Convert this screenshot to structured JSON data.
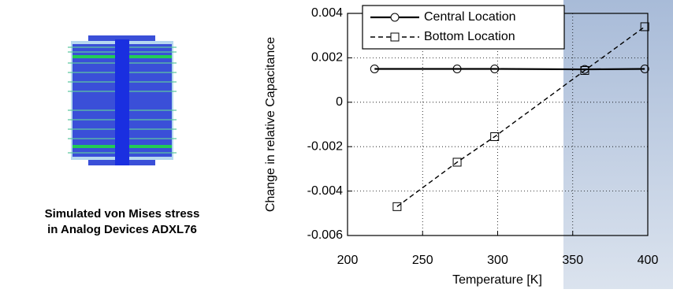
{
  "caption": [
    "Simulated von Mises stress",
    "in Analog Devices ADXL76"
  ],
  "chart_data": {
    "type": "line",
    "xlabel": "Temperature [K]",
    "ylabel": "Change in relative Capacitance",
    "series": [
      {
        "name": "Central Location",
        "color": "#000000",
        "dash": "solid",
        "marker": "circle",
        "x": [
          218,
          273,
          298,
          358,
          398
        ],
        "values": [
          0.0015,
          0.0015,
          0.0015,
          0.00148,
          0.0015
        ]
      },
      {
        "name": "Bottom Location",
        "color": "#000000",
        "dash": "dashed",
        "marker": "square",
        "x": [
          233,
          273,
          298,
          358,
          398
        ],
        "values": [
          -0.0047,
          -0.0027,
          -0.00155,
          0.00143,
          0.0034
        ]
      }
    ],
    "xlim": [
      200,
      400
    ],
    "xticks": [
      200,
      250,
      300,
      350,
      400
    ],
    "ylim": [
      -0.006,
      0.004
    ],
    "yticks": [
      -0.006,
      -0.004,
      -0.002,
      0,
      0.002,
      0.004
    ],
    "grid": true,
    "legend": "top-left"
  }
}
